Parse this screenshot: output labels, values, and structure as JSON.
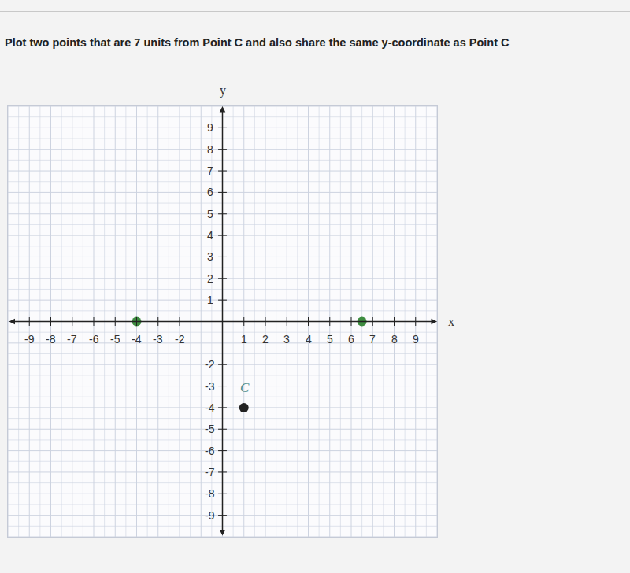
{
  "question": "Plot two points that are 7 units from Point C and also share the same y-coordinate as Point C",
  "chart_data": {
    "type": "scatter",
    "x_label": "x",
    "y_label": "y",
    "xlim": [
      -10,
      10
    ],
    "ylim": [
      -10,
      10
    ],
    "xticks": [
      -9,
      -8,
      -7,
      -6,
      -5,
      -4,
      -3,
      -2,
      1,
      2,
      3,
      4,
      5,
      6,
      7,
      8,
      9
    ],
    "yticks": [
      -9,
      -8,
      -7,
      -6,
      -5,
      -4,
      -3,
      -2,
      1,
      2,
      3,
      4,
      5,
      6,
      7,
      8,
      9
    ],
    "grid": true,
    "series": [
      {
        "labels": [
          "C"
        ],
        "color": "#222222",
        "x": [
          1
        ],
        "y": [
          -4
        ]
      },
      {
        "color": "#3d8c40",
        "x": [
          -4,
          6.5
        ],
        "y": [
          0,
          0
        ]
      }
    ]
  }
}
